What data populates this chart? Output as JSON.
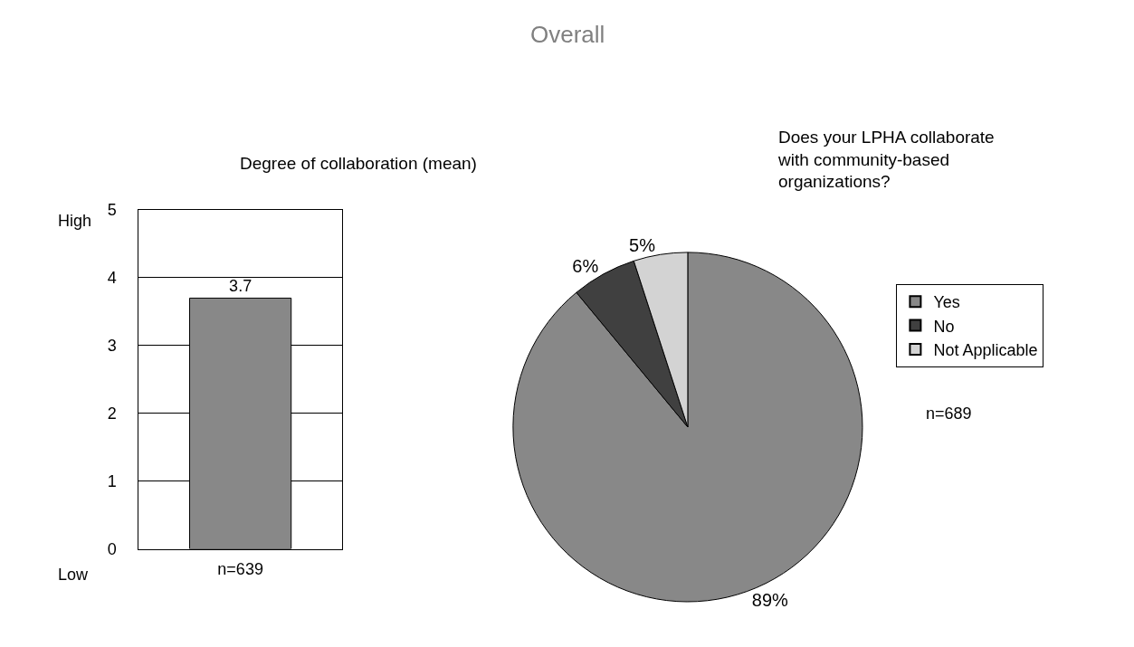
{
  "chart_data": [
    {
      "type": "bar",
      "title": "Degree of collaboration (mean)",
      "xlabel": "n=639",
      "categories": [
        null
      ],
      "values": [
        3.7
      ],
      "color": "#888888",
      "ylim": [
        0,
        5
      ],
      "yticks": [
        0,
        1,
        2,
        3,
        4,
        5
      ],
      "grid": "y",
      "data_labels": true,
      "tick_labels": "y",
      "legend": false,
      "annotations": [
        "Overall",
        "High",
        "Low"
      ]
    },
    {
      "type": "pie",
      "title": "Does your LPHA collaborate\nwith community-based\norganizations?",
      "categories": [
        "Yes",
        "No",
        "Not Applicable"
      ],
      "values": [
        89,
        6,
        5
      ],
      "colors": [
        "#888888",
        "#404040",
        "#d3d3d3"
      ],
      "value_labels": [
        "89%",
        "6%",
        "5%"
      ],
      "legend": "right",
      "annotations": [
        "n=689"
      ]
    }
  ]
}
